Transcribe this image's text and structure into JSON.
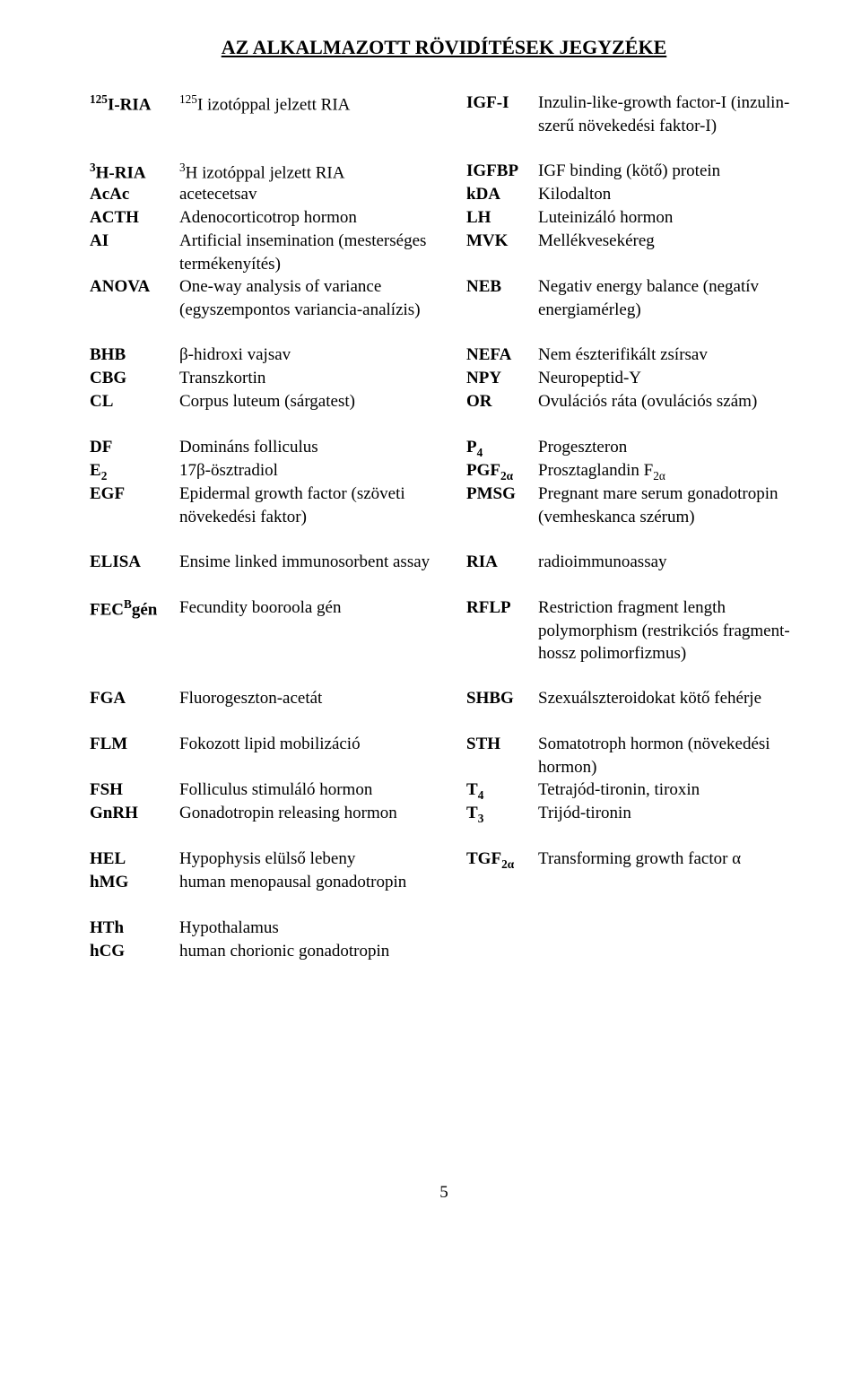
{
  "title": "AZ ALKALMAZOTT RÖVIDÍTÉSEK JEGYZÉKE",
  "page_number": "5",
  "left": [
    {
      "abbr_html": "<span class='sup'>125</span>I-RIA",
      "def_html": "<span class='sup'>125</span>I izotóppal jelzett RIA",
      "cls": "h-1"
    },
    {
      "abbr_html": "<span class='sup'>3</span>H-RIA",
      "def_html": "<span class='sup'>3</span>H izotóppal jelzett RIA",
      "cls": "h-1x"
    },
    {
      "abbr_html": "AcAc",
      "def_html": "acetecetsav",
      "cls": "h-2"
    },
    {
      "abbr_html": "ACTH",
      "def_html": "Adenocorticotrop hormon",
      "cls": "h-3"
    },
    {
      "abbr_html": "AI",
      "def_html": "Artificial insemination (mesterséges termékenyítés)",
      "cls": "h-4"
    },
    {
      "abbr_html": "ANOVA",
      "def_html": "One-way analysis of variance (egyszempontos variancia-analízis)",
      "cls": "h-5"
    },
    {
      "abbr_html": "BHB",
      "def_html": "β-hidroxi vajsav",
      "cls": "h-6"
    },
    {
      "abbr_html": "CBG",
      "def_html": "Transzkortin",
      "cls": "h-7"
    },
    {
      "abbr_html": "CL",
      "def_html": "Corpus luteum (sárgatest)",
      "cls": "h-8"
    },
    {
      "abbr_html": "DF",
      "def_html": "Domináns folliculus",
      "cls": "h-9"
    },
    {
      "abbr_html": "E<span class='sub'>2</span>",
      "def_html": "17β-ösztradiol",
      "cls": "h-10"
    },
    {
      "abbr_html": "EGF",
      "def_html": "Epidermal growth factor (szöveti növekedési faktor)",
      "cls": "h-11"
    },
    {
      "abbr_html": "ELISA",
      "def_html": "Ensime linked immunosorbent assay",
      "cls": "h-12"
    },
    {
      "abbr_html": "FEC<span class='sup'>B</span>gén",
      "def_html": "Fecundity booroola gén",
      "cls": "h-13"
    },
    {
      "abbr_html": "FGA",
      "def_html": "Fluorogeszton-acetát",
      "cls": "h-14"
    },
    {
      "abbr_html": "FLM",
      "def_html": "Fokozott lipid mobilizáció",
      "cls": "h-15"
    },
    {
      "abbr_html": "FSH",
      "def_html": "Folliculus stimuláló hormon",
      "cls": "h-16"
    },
    {
      "abbr_html": "GnRH",
      "def_html": "Gonadotropin releasing hormon",
      "cls": "h-17"
    },
    {
      "abbr_html": "HEL",
      "def_html": "Hypophysis elülső lebeny",
      "cls": "h-18"
    },
    {
      "abbr_html": "hMG",
      "def_html": "human menopausal gonadotropin",
      "cls": "h-19"
    },
    {
      "abbr_html": "HTh",
      "def_html": "Hypothalamus",
      "cls": "h-20"
    },
    {
      "abbr_html": "hCG",
      "def_html": "human chorionic gonadotropin",
      "cls": "h-21"
    }
  ],
  "right": [
    {
      "abbr_html": "IGF-I",
      "def_html": "Inzulin-like-growth factor-I (inzulin-szerű növekedési faktor-I)",
      "cls": "h-1"
    },
    {
      "abbr_html": "IGFBP",
      "def_html": "IGF binding (kötő) protein",
      "cls": "h-1x"
    },
    {
      "abbr_html": "kDA",
      "def_html": "Kilodalton",
      "cls": "h-2"
    },
    {
      "abbr_html": "LH",
      "def_html": "Luteinizáló hormon",
      "cls": "h-3"
    },
    {
      "abbr_html": "MVK",
      "def_html": "Mellékvesekéreg",
      "cls": "h-4"
    },
    {
      "abbr_html": "NEB",
      "def_html": "Negativ energy balance (negatív energiamérleg)",
      "cls": "h-5"
    },
    {
      "abbr_html": "NEFA",
      "def_html": "Nem észterifikált zsírsav",
      "cls": "h-6"
    },
    {
      "abbr_html": "NPY",
      "def_html": "Neuropeptid-Y",
      "cls": "h-7"
    },
    {
      "abbr_html": "OR",
      "def_html": "Ovulációs ráta (ovulációs szám)",
      "cls": "h-8"
    },
    {
      "abbr_html": "P<span class='sub'>4</span>",
      "def_html": "Progeszteron",
      "cls": "h-9"
    },
    {
      "abbr_html": "PGF<span class='sub'>2α</span>",
      "def_html": "Prosztaglandin F<span class='sub'>2α</span>",
      "cls": "h-10"
    },
    {
      "abbr_html": "PMSG",
      "def_html": "Pregnant mare serum gonadotropin (vemheskanca szérum)",
      "cls": "h-11"
    },
    {
      "abbr_html": "RIA",
      "def_html": "radioimmunoassay",
      "cls": "h-12"
    },
    {
      "abbr_html": "RFLP",
      "def_html": "Restriction fragment length polymorphism (restrikciós fragment-hossz polimorfizmus)",
      "cls": "h-13"
    },
    {
      "abbr_html": "SHBG",
      "def_html": "Szexuálszteroidokat kötő fehérje",
      "cls": "h-14"
    },
    {
      "abbr_html": "STH",
      "def_html": "Somatotroph hormon (növekedési hormon)",
      "cls": "h-15"
    },
    {
      "abbr_html": "T<span class='sub'>4</span>",
      "def_html": "Tetrajód-tironin, tiroxin",
      "cls": "h-16"
    },
    {
      "abbr_html": "T<span class='sub'>3</span>",
      "def_html": "Trijód-tironin",
      "cls": "h-17"
    },
    {
      "abbr_html": "TGF<span class='sub'>2α</span>",
      "def_html": "Transforming growth factor α",
      "cls": "h-18"
    }
  ]
}
